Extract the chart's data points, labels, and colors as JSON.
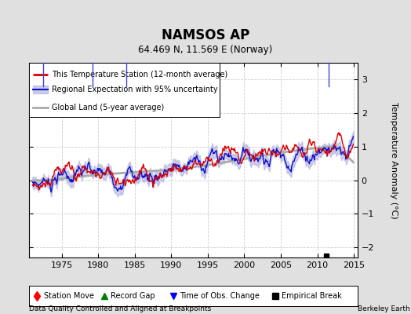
{
  "title": "NAMSOS AP",
  "subtitle": "64.469 N, 11.569 E (Norway)",
  "xlabel_bottom": "Data Quality Controlled and Aligned at Breakpoints",
  "xlabel_right": "Berkeley Earth",
  "ylabel": "Temperature Anomaly (°C)",
  "ylim": [
    -2.3,
    3.5
  ],
  "xlim": [
    1970.5,
    2015.5
  ],
  "xticks": [
    1975,
    1980,
    1985,
    1990,
    1995,
    2000,
    2005,
    2010,
    2015
  ],
  "yticks": [
    -2,
    -1,
    0,
    1,
    2,
    3
  ],
  "background_color": "#e0e0e0",
  "plot_bg_color": "#ffffff",
  "grid_color": "#cccccc",
  "legend_entries": [
    "This Temperature Station (12-month average)",
    "Regional Expectation with 95% uncertainty",
    "Global Land (5-year average)"
  ],
  "station_color": "#dd0000",
  "regional_line_color": "#1111cc",
  "regional_fill_color": "#aaaadd",
  "global_line_color": "#aaaaaa",
  "event_markers": {
    "time_obs_changes": [
      1972.5,
      1979.2,
      1983.8,
      2011.5
    ],
    "empirical_breaks": [
      2011.2
    ]
  },
  "figsize": [
    5.24,
    4.0
  ],
  "dpi": 100
}
